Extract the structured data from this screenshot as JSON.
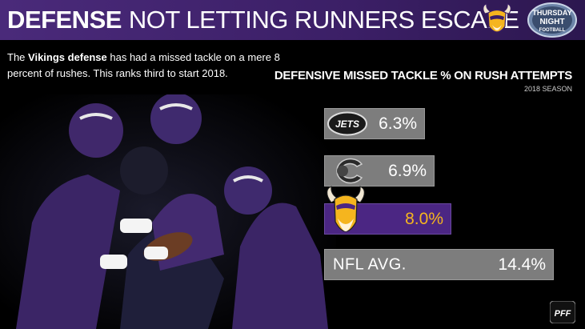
{
  "header": {
    "title_strong": "DEFENSE",
    "title_rest": "NOT LETTING RUNNERS ESCAPE",
    "colors": {
      "header_purple": "#4a2a7a",
      "accent_gold": "#f5b51e"
    }
  },
  "intro": {
    "prefix": "The ",
    "highlight": "Vikings defense",
    "suffix": " has had a missed tackle on a mere 8 percent of rushes. This ranks third to start 2018."
  },
  "logos": {
    "tnf_line1": "THURSDAY",
    "tnf_line2": "NIGHT",
    "tnf_line3": "FOOTBALL",
    "jets_text": "JETS",
    "pff": "PFF"
  },
  "chart_data": {
    "type": "bar",
    "title": "DEFENSIVE MISSED TACKLE % ON RUSH ATTEMPTS",
    "subtitle": "2018 SEASON",
    "categories": [
      "Jets",
      "Bears",
      "Vikings",
      "NFL AVG."
    ],
    "values": [
      6.3,
      6.9,
      8.0,
      14.4
    ],
    "value_labels": [
      "6.3%",
      "6.9%",
      "8.0%",
      "14.4%"
    ],
    "text_labels": [
      "",
      "",
      "",
      "NFL AVG."
    ],
    "highlight_index": 2,
    "xlim": [
      0,
      14.4
    ],
    "colors": {
      "default": "#7d7d7d",
      "highlight": "#4b2683",
      "highlight_text": "#f5b51e"
    }
  }
}
